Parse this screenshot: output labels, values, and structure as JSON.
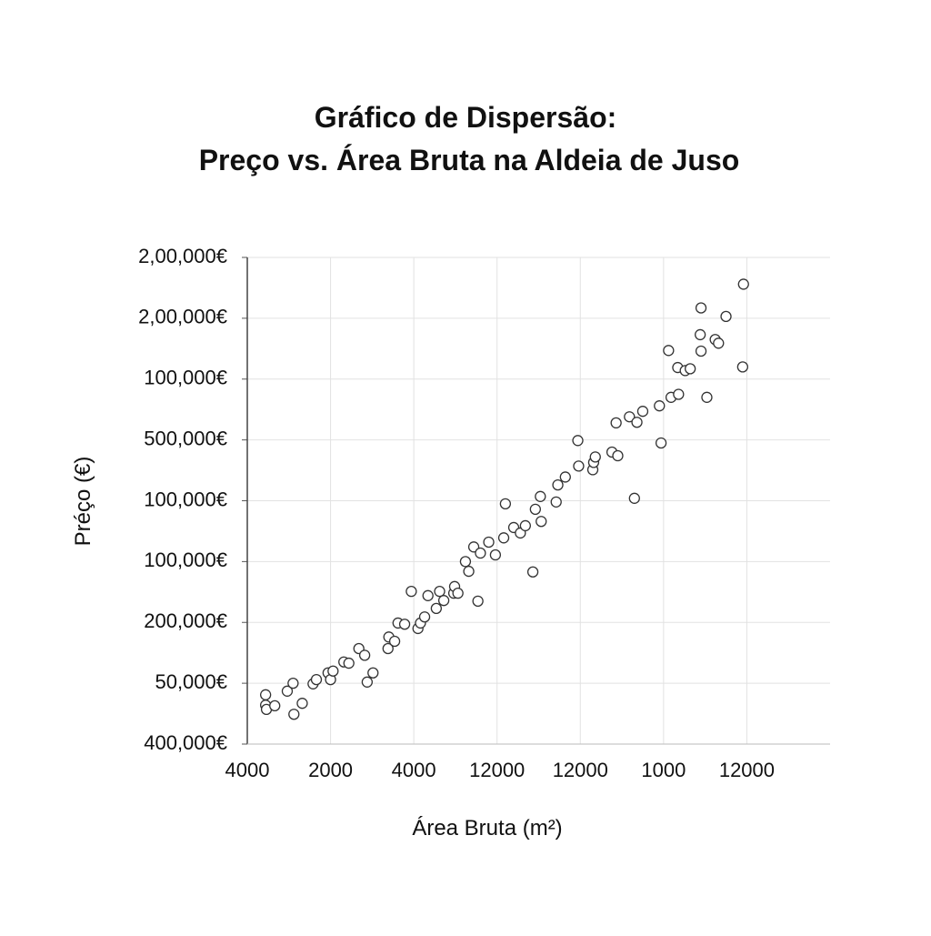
{
  "chart_data": {
    "type": "scatter",
    "title": [
      "Gráfico de Dispersão:",
      "Preço vs. Área Bruta na Aldeia de Juso"
    ],
    "x_label": "Área Bruta (m²)",
    "y_label": "Préço (€)",
    "color": "#333333",
    "grid": true,
    "xlim": [
      0,
      7
    ],
    "ylim": [
      0,
      8
    ],
    "xticks": [
      {
        "value": 0,
        "label": "4000"
      },
      {
        "value": 1,
        "label": "2000"
      },
      {
        "value": 2,
        "label": "4000"
      },
      {
        "value": 3,
        "label": "12000"
      },
      {
        "value": 4,
        "label": "12000"
      },
      {
        "value": 5,
        "label": "1000"
      },
      {
        "value": 6,
        "label": "12000"
      }
    ],
    "yticks": [
      {
        "value": 0,
        "label": "400,000€"
      },
      {
        "value": 1,
        "label": "50,000€"
      },
      {
        "value": 2,
        "label": "200,000€"
      },
      {
        "value": 3,
        "label": "100,000€"
      },
      {
        "value": 4,
        "label": "100,000€"
      },
      {
        "value": 5,
        "label": "500,000€"
      },
      {
        "value": 6,
        "label": "100,000€"
      },
      {
        "value": 7,
        "label": "2,00,000€"
      },
      {
        "value": 8,
        "label": "2,00,000€"
      }
    ],
    "x": [
      0.22,
      0.22,
      0.23,
      0.33,
      0.48,
      0.55,
      0.56,
      0.66,
      0.79,
      0.83,
      0.97,
      1.0,
      1.03,
      1.16,
      1.22,
      1.34,
      1.41,
      1.44,
      1.51,
      1.69,
      1.7,
      1.77,
      1.81,
      1.89,
      1.97,
      2.05,
      2.08,
      2.13,
      2.17,
      2.27,
      2.31,
      2.36,
      2.48,
      2.49,
      2.53,
      2.62,
      2.66,
      2.72,
      2.77,
      2.8,
      2.9,
      2.98,
      3.08,
      3.1,
      3.2,
      3.28,
      3.34,
      3.43,
      3.46,
      3.53,
      3.52,
      3.71,
      3.73,
      3.82,
      3.97,
      3.98,
      4.15,
      4.16,
      4.18,
      4.38,
      4.43,
      4.45,
      4.59,
      4.65,
      4.68,
      4.75,
      4.95,
      4.97,
      5.06,
      5.09,
      5.17,
      5.18,
      5.26,
      5.32,
      5.45,
      5.44,
      5.45,
      5.52,
      5.62,
      5.66,
      5.75,
      5.96,
      5.95
    ],
    "values": [
      0.81,
      0.64,
      0.57,
      0.63,
      0.87,
      1.0,
      0.49,
      0.67,
      0.99,
      1.06,
      1.17,
      1.06,
      1.2,
      1.35,
      1.33,
      1.57,
      1.46,
      1.02,
      1.17,
      1.57,
      1.76,
      1.69,
      1.99,
      1.97,
      2.51,
      1.9,
      1.99,
      2.09,
      2.44,
      2.23,
      2.51,
      2.36,
      2.48,
      2.59,
      2.48,
      3.0,
      2.84,
      3.24,
      2.35,
      3.14,
      3.32,
      3.11,
      3.39,
      3.95,
      3.56,
      3.47,
      3.59,
      2.83,
      3.86,
      3.66,
      4.07,
      3.98,
      4.26,
      4.39,
      4.99,
      4.57,
      4.51,
      4.63,
      4.72,
      4.8,
      5.28,
      4.74,
      5.38,
      4.04,
      5.29,
      5.47,
      5.56,
      4.95,
      6.47,
      5.7,
      6.19,
      5.75,
      6.14,
      6.17,
      7.17,
      6.73,
      6.46,
      5.7,
      6.65,
      6.59,
      7.03,
      7.56,
      6.2
    ]
  }
}
